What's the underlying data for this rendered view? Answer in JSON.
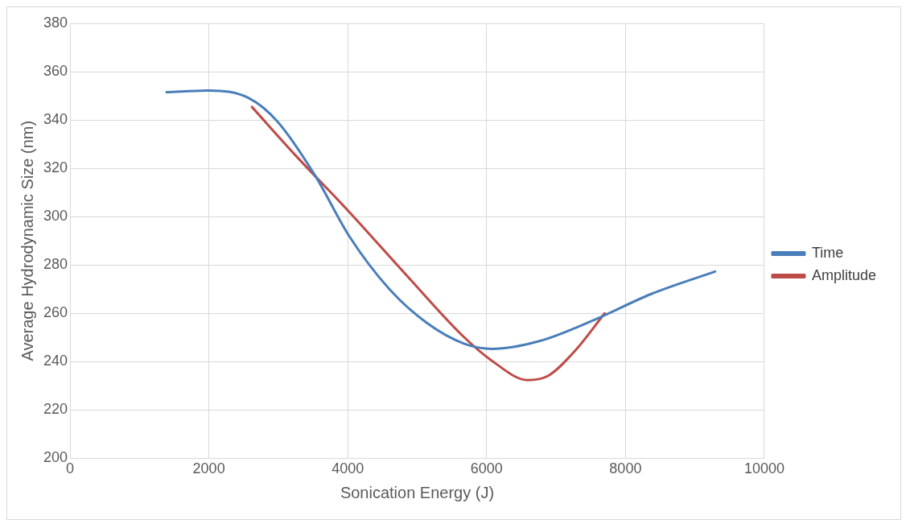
{
  "chart_data": {
    "type": "line",
    "xlabel": "Sonication Energy (J)",
    "ylabel": "Average Hydrodynamic Size (nm)",
    "xlim": [
      0,
      10000
    ],
    "xticks": [
      0,
      2000,
      4000,
      6000,
      8000,
      10000
    ],
    "ylim": [
      200,
      380
    ],
    "yticks": [
      200,
      220,
      240,
      260,
      280,
      300,
      320,
      340,
      360,
      380
    ],
    "grid": true,
    "legend": "right",
    "marker": "none",
    "line_style": "solid",
    "series": [
      {
        "name": "Time",
        "color": "#4a7ebb",
        "x": [
          1390,
          2000,
          2580,
          2990,
          3530,
          4020,
          4600,
          5140,
          5680,
          6080,
          6760,
          7560,
          8370,
          9290
        ],
        "values": [
          351.5,
          352.2,
          349,
          339.3,
          317,
          292,
          270,
          256,
          247.4,
          245.3,
          248.5,
          257.4,
          268,
          277.3
        ]
      },
      {
        "name": "Amplitude",
        "color": "#be4b48",
        "x": [
          2620,
          3260,
          4020,
          4870,
          5680,
          6080,
          6590,
          6890,
          7290,
          7700
        ],
        "values": [
          345.4,
          325,
          302,
          275,
          250,
          240.3,
          232.4,
          234.2,
          245,
          260
        ]
      }
    ]
  }
}
